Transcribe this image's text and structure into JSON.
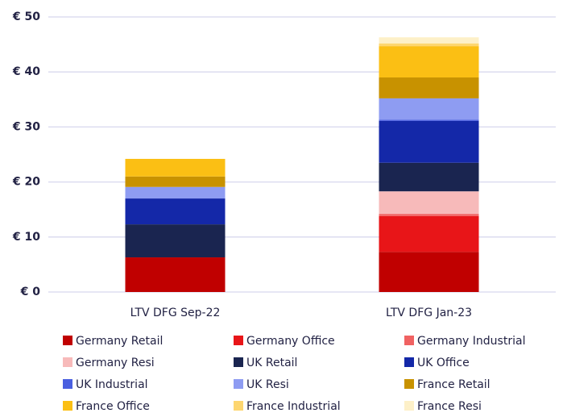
{
  "chart_data": {
    "type": "stacked_bar",
    "categories": [
      "LTV DFG Sep-22",
      "LTV DFG Jan-23"
    ],
    "series": [
      {
        "name": "Germany Retail",
        "color": "#c00000",
        "values": [
          6.3,
          7.3
        ]
      },
      {
        "name": "Germany Office",
        "color": "#e81518",
        "values": [
          0,
          6.5
        ]
      },
      {
        "name": "Germany Industrial",
        "color": "#f06262",
        "values": [
          0,
          0.4
        ]
      },
      {
        "name": "Germany Resi",
        "color": "#f7baba",
        "values": [
          0,
          4.1
        ]
      },
      {
        "name": "UK Retail",
        "color": "#1a2550",
        "values": [
          6.0,
          5.2
        ]
      },
      {
        "name": "UK Office",
        "color": "#1428a8",
        "values": [
          4.7,
          7.6
        ]
      },
      {
        "name": "UK Industrial",
        "color": "#4a5fe0",
        "values": [
          0,
          0.2
        ]
      },
      {
        "name": "UK Resi",
        "color": "#8e9cf2",
        "values": [
          2.1,
          3.9
        ]
      },
      {
        "name": "France Retail",
        "color": "#c89200",
        "values": [
          1.9,
          3.8
        ]
      },
      {
        "name": "France Office",
        "color": "#fbbf14",
        "values": [
          3.2,
          5.7
        ]
      },
      {
        "name": "France Industrial",
        "color": "#fdd670",
        "values": [
          0,
          0.5
        ]
      },
      {
        "name": "France Resi",
        "color": "#fdf0c8",
        "values": [
          0,
          1.1
        ]
      }
    ],
    "ylim": [
      0,
      50
    ],
    "yticks": [
      {
        "value": 0,
        "label": "€ 0"
      },
      {
        "value": 10,
        "label": "€ 10"
      },
      {
        "value": 20,
        "label": "€ 20"
      },
      {
        "value": 30,
        "label": "€ 30"
      },
      {
        "value": 40,
        "label": "€ 40"
      },
      {
        "value": 50,
        "label": "€ 50"
      }
    ],
    "grid": true,
    "legend": "bottom"
  }
}
